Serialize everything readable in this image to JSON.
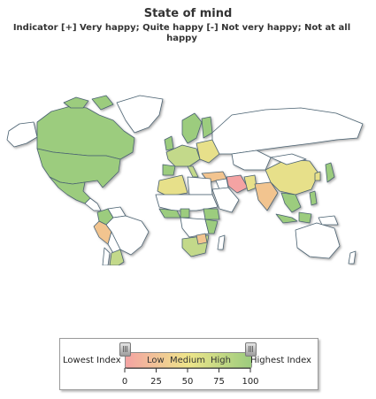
{
  "title": "State of mind",
  "subtitle": "Indicator [+] Very happy; Quite happy [-] Not very happy; Not at all happy",
  "legend": {
    "lowest_label": "Lowest Index",
    "highest_label": "Highest Index",
    "zones": [
      "Low",
      "Medium",
      "High"
    ],
    "ticks": [
      "0",
      "25",
      "50",
      "75",
      "100"
    ],
    "range_min": 0,
    "range_max": 100,
    "colors": [
      "#f4a3a3",
      "#eee58a",
      "#9ccc7e"
    ]
  },
  "map_colors": {
    "ocean": "#ffffff",
    "no_data": "#ffffff",
    "high": "#9ccc7e",
    "medium_high": "#c3d98a",
    "medium": "#e7e08a",
    "low_medium": "#f2c48f",
    "low": "#f4a3a3",
    "border": "#4a6272",
    "shadow": "#c9c9c9"
  }
}
